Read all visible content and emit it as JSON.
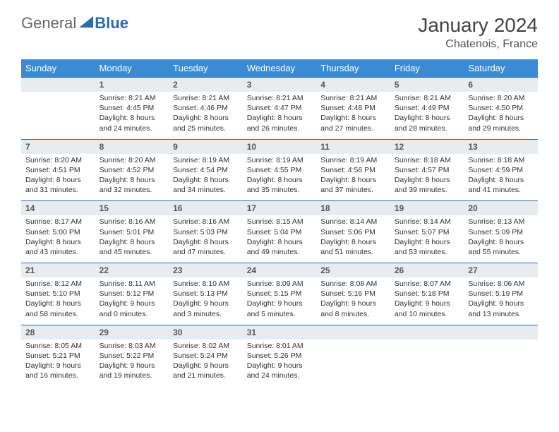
{
  "brand": {
    "part1": "General",
    "part2": "Blue"
  },
  "title": "January 2024",
  "location": "Chatenois, France",
  "colors": {
    "header_bg": "#3b8bd4",
    "header_text": "#ffffff",
    "date_bg": "#e8ecef",
    "date_border": "#2b6cb0",
    "body_text": "#333333",
    "brand_gray": "#666666",
    "brand_blue": "#2b6cb0"
  },
  "dayNames": [
    "Sunday",
    "Monday",
    "Tuesday",
    "Wednesday",
    "Thursday",
    "Friday",
    "Saturday"
  ],
  "weeks": [
    {
      "dates": [
        "",
        "1",
        "2",
        "3",
        "4",
        "5",
        "6"
      ],
      "cells": [
        null,
        {
          "sunrise": "Sunrise: 8:21 AM",
          "sunset": "Sunset: 4:45 PM",
          "daylight": "Daylight: 8 hours and 24 minutes."
        },
        {
          "sunrise": "Sunrise: 8:21 AM",
          "sunset": "Sunset: 4:46 PM",
          "daylight": "Daylight: 8 hours and 25 minutes."
        },
        {
          "sunrise": "Sunrise: 8:21 AM",
          "sunset": "Sunset: 4:47 PM",
          "daylight": "Daylight: 8 hours and 26 minutes."
        },
        {
          "sunrise": "Sunrise: 8:21 AM",
          "sunset": "Sunset: 4:48 PM",
          "daylight": "Daylight: 8 hours and 27 minutes."
        },
        {
          "sunrise": "Sunrise: 8:21 AM",
          "sunset": "Sunset: 4:49 PM",
          "daylight": "Daylight: 8 hours and 28 minutes."
        },
        {
          "sunrise": "Sunrise: 8:20 AM",
          "sunset": "Sunset: 4:50 PM",
          "daylight": "Daylight: 8 hours and 29 minutes."
        }
      ]
    },
    {
      "dates": [
        "7",
        "8",
        "9",
        "10",
        "11",
        "12",
        "13"
      ],
      "cells": [
        {
          "sunrise": "Sunrise: 8:20 AM",
          "sunset": "Sunset: 4:51 PM",
          "daylight": "Daylight: 8 hours and 31 minutes."
        },
        {
          "sunrise": "Sunrise: 8:20 AM",
          "sunset": "Sunset: 4:52 PM",
          "daylight": "Daylight: 8 hours and 32 minutes."
        },
        {
          "sunrise": "Sunrise: 8:19 AM",
          "sunset": "Sunset: 4:54 PM",
          "daylight": "Daylight: 8 hours and 34 minutes."
        },
        {
          "sunrise": "Sunrise: 8:19 AM",
          "sunset": "Sunset: 4:55 PM",
          "daylight": "Daylight: 8 hours and 35 minutes."
        },
        {
          "sunrise": "Sunrise: 8:19 AM",
          "sunset": "Sunset: 4:56 PM",
          "daylight": "Daylight: 8 hours and 37 minutes."
        },
        {
          "sunrise": "Sunrise: 8:18 AM",
          "sunset": "Sunset: 4:57 PM",
          "daylight": "Daylight: 8 hours and 39 minutes."
        },
        {
          "sunrise": "Sunrise: 8:18 AM",
          "sunset": "Sunset: 4:59 PM",
          "daylight": "Daylight: 8 hours and 41 minutes."
        }
      ]
    },
    {
      "dates": [
        "14",
        "15",
        "16",
        "17",
        "18",
        "19",
        "20"
      ],
      "cells": [
        {
          "sunrise": "Sunrise: 8:17 AM",
          "sunset": "Sunset: 5:00 PM",
          "daylight": "Daylight: 8 hours and 43 minutes."
        },
        {
          "sunrise": "Sunrise: 8:16 AM",
          "sunset": "Sunset: 5:01 PM",
          "daylight": "Daylight: 8 hours and 45 minutes."
        },
        {
          "sunrise": "Sunrise: 8:16 AM",
          "sunset": "Sunset: 5:03 PM",
          "daylight": "Daylight: 8 hours and 47 minutes."
        },
        {
          "sunrise": "Sunrise: 8:15 AM",
          "sunset": "Sunset: 5:04 PM",
          "daylight": "Daylight: 8 hours and 49 minutes."
        },
        {
          "sunrise": "Sunrise: 8:14 AM",
          "sunset": "Sunset: 5:06 PM",
          "daylight": "Daylight: 8 hours and 51 minutes."
        },
        {
          "sunrise": "Sunrise: 8:14 AM",
          "sunset": "Sunset: 5:07 PM",
          "daylight": "Daylight: 8 hours and 53 minutes."
        },
        {
          "sunrise": "Sunrise: 8:13 AM",
          "sunset": "Sunset: 5:09 PM",
          "daylight": "Daylight: 8 hours and 55 minutes."
        }
      ]
    },
    {
      "dates": [
        "21",
        "22",
        "23",
        "24",
        "25",
        "26",
        "27"
      ],
      "cells": [
        {
          "sunrise": "Sunrise: 8:12 AM",
          "sunset": "Sunset: 5:10 PM",
          "daylight": "Daylight: 8 hours and 58 minutes."
        },
        {
          "sunrise": "Sunrise: 8:11 AM",
          "sunset": "Sunset: 5:12 PM",
          "daylight": "Daylight: 9 hours and 0 minutes."
        },
        {
          "sunrise": "Sunrise: 8:10 AM",
          "sunset": "Sunset: 5:13 PM",
          "daylight": "Daylight: 9 hours and 3 minutes."
        },
        {
          "sunrise": "Sunrise: 8:09 AM",
          "sunset": "Sunset: 5:15 PM",
          "daylight": "Daylight: 9 hours and 5 minutes."
        },
        {
          "sunrise": "Sunrise: 8:08 AM",
          "sunset": "Sunset: 5:16 PM",
          "daylight": "Daylight: 9 hours and 8 minutes."
        },
        {
          "sunrise": "Sunrise: 8:07 AM",
          "sunset": "Sunset: 5:18 PM",
          "daylight": "Daylight: 9 hours and 10 minutes."
        },
        {
          "sunrise": "Sunrise: 8:06 AM",
          "sunset": "Sunset: 5:19 PM",
          "daylight": "Daylight: 9 hours and 13 minutes."
        }
      ]
    },
    {
      "dates": [
        "28",
        "29",
        "30",
        "31",
        "",
        "",
        ""
      ],
      "cells": [
        {
          "sunrise": "Sunrise: 8:05 AM",
          "sunset": "Sunset: 5:21 PM",
          "daylight": "Daylight: 9 hours and 16 minutes."
        },
        {
          "sunrise": "Sunrise: 8:03 AM",
          "sunset": "Sunset: 5:22 PM",
          "daylight": "Daylight: 9 hours and 19 minutes."
        },
        {
          "sunrise": "Sunrise: 8:02 AM",
          "sunset": "Sunset: 5:24 PM",
          "daylight": "Daylight: 9 hours and 21 minutes."
        },
        {
          "sunrise": "Sunrise: 8:01 AM",
          "sunset": "Sunset: 5:26 PM",
          "daylight": "Daylight: 9 hours and 24 minutes."
        },
        null,
        null,
        null
      ]
    }
  ]
}
